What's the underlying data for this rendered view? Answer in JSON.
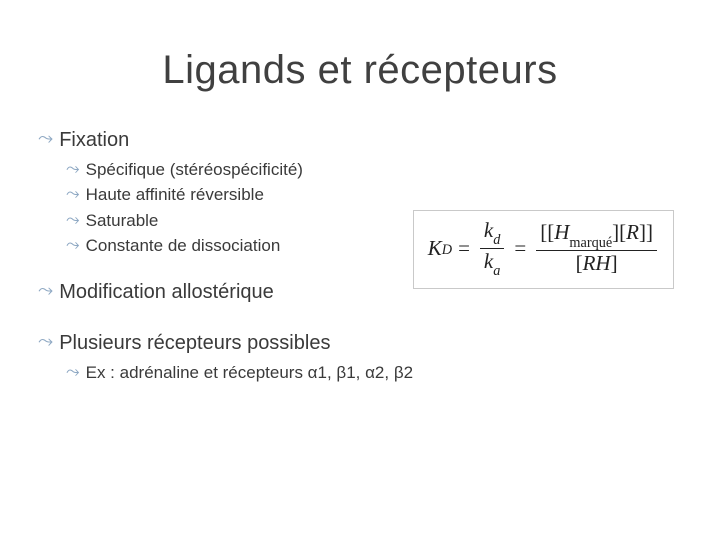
{
  "title": "Ligands et récepteurs",
  "bullets": {
    "fixation": "Fixation",
    "specifique": "Spécifique (stéréospécificité)",
    "haute": "Haute affinité réversible",
    "saturable": "Saturable",
    "constante": "Constante de dissociation",
    "modification": "Modification allostérique",
    "plusieurs": "Plusieurs récepteurs possibles",
    "ex": "Ex : adrénaline et récepteurs α1, β1, α2, β2"
  },
  "formula": {
    "K": "K",
    "D": "D",
    "k": "k",
    "d": "d",
    "a": "a",
    "H": "H",
    "marque": "marqué",
    "R": "R",
    "RH": "RH",
    "eq": "="
  },
  "style": {
    "title_color": "#404040",
    "text_color": "#3a3a3a",
    "bullet_color": "#8ea8c3",
    "box_border": "#c9c9c9",
    "background": "#ffffff",
    "title_fontsize": 40,
    "lvl1_fontsize": 20,
    "lvl2_fontsize": 17,
    "bullet_glyph": "⤳"
  }
}
